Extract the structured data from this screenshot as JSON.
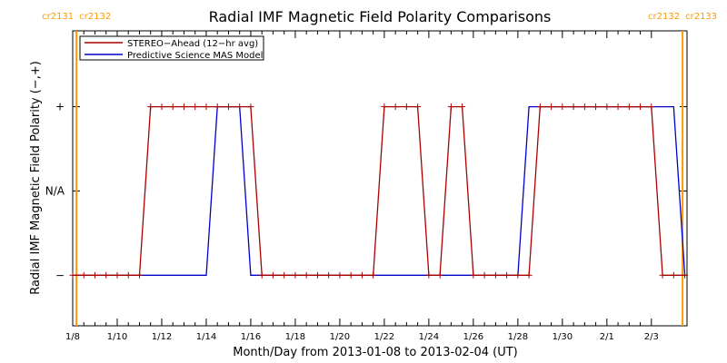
{
  "chart_data": {
    "type": "line",
    "title": "Radial IMF Magnetic Field Polarity Comparisons",
    "xlabel": "Month/Day from 2013-01-08 to 2013-02-04 (UT)",
    "ylabel": "Radial IMF Magnetic Field Polarity (−,+)",
    "xlim": [
      0,
      27.6
    ],
    "ylim": [
      -1.6,
      1.9
    ],
    "x_ticks": [
      {
        "x": 0,
        "label": "1/8"
      },
      {
        "x": 2,
        "label": "1/10"
      },
      {
        "x": 4,
        "label": "1/12"
      },
      {
        "x": 6,
        "label": "1/14"
      },
      {
        "x": 8,
        "label": "1/16"
      },
      {
        "x": 10,
        "label": "1/18"
      },
      {
        "x": 12,
        "label": "1/20"
      },
      {
        "x": 14,
        "label": "1/22"
      },
      {
        "x": 16,
        "label": "1/24"
      },
      {
        "x": 18,
        "label": "1/26"
      },
      {
        "x": 20,
        "label": "1/28"
      },
      {
        "x": 22,
        "label": "1/30"
      },
      {
        "x": 24,
        "label": "2/1"
      },
      {
        "x": 26,
        "label": "2/3"
      }
    ],
    "y_ticks": [
      {
        "y": 1,
        "label": "+"
      },
      {
        "y": 0,
        "label": "N/A"
      },
      {
        "y": -1,
        "label": "−"
      }
    ],
    "legend_position": "top-left",
    "carrington_markers": [
      {
        "x": 0.17,
        "left_label": "cr2131",
        "right_label": "cr2132",
        "color": "#ff9900"
      },
      {
        "x": 27.4,
        "left_label": "cr2132",
        "right_label": "cr2133",
        "color": "#ff9900"
      }
    ],
    "series": [
      {
        "name": "STEREO−Ahead (12−hr avg)",
        "color": "#aa0000",
        "markers": true,
        "x": [
          0,
          0.5,
          1,
          1.5,
          2,
          2.5,
          3,
          3.5,
          4,
          4.5,
          5,
          5.5,
          6,
          6.5,
          7,
          7.5,
          8,
          8.5,
          9,
          9.5,
          10,
          10.5,
          11,
          11.5,
          12,
          12.5,
          13,
          13.5,
          14,
          14.5,
          15,
          15.5,
          16,
          16.5,
          17,
          17.5,
          18,
          18.5,
          19,
          19.5,
          20,
          20.5,
          21,
          21.5,
          22,
          22.5,
          23,
          23.5,
          24,
          24.5,
          25,
          25.5,
          26,
          26.5,
          27,
          27.5
        ],
        "values": [
          -1,
          -1,
          -1,
          -1,
          -1,
          -1,
          -1,
          1,
          1,
          1,
          1,
          1,
          1,
          1,
          1,
          1,
          1,
          -1,
          -1,
          -1,
          -1,
          -1,
          -1,
          -1,
          -1,
          -1,
          -1,
          -1,
          1,
          1,
          1,
          1,
          -1,
          -1,
          1,
          1,
          -1,
          -1,
          -1,
          -1,
          -1,
          -1,
          1,
          1,
          1,
          1,
          1,
          1,
          1,
          1,
          1,
          1,
          1,
          -1,
          -1,
          -1
        ]
      },
      {
        "name": "Predictive Science MAS Model",
        "color": "#0000cc",
        "markers": false,
        "x": [
          0,
          0.5,
          1,
          1.5,
          2,
          2.5,
          3,
          3.5,
          4,
          4.5,
          5,
          5.5,
          6,
          6.5,
          7,
          7.5,
          8,
          8.5,
          9,
          9.5,
          10,
          10.5,
          11,
          11.5,
          12,
          12.5,
          13,
          13.5,
          14,
          14.5,
          15,
          15.5,
          16,
          16.5,
          17,
          17.5,
          18,
          18.5,
          19,
          19.5,
          20,
          20.5,
          21,
          21.5,
          22,
          22.5,
          23,
          23.5,
          24,
          24.5,
          25,
          25.5,
          26,
          26.5,
          27,
          27.5
        ],
        "values": [
          -1,
          -1,
          -1,
          -1,
          -1,
          -1,
          -1,
          -1,
          -1,
          -1,
          -1,
          -1,
          -1,
          1,
          1,
          1,
          -1,
          -1,
          -1,
          -1,
          -1,
          -1,
          -1,
          -1,
          -1,
          -1,
          -1,
          -1,
          -1,
          -1,
          -1,
          -1,
          -1,
          -1,
          -1,
          -1,
          -1,
          -1,
          -1,
          -1,
          -1,
          1,
          1,
          1,
          1,
          1,
          1,
          1,
          1,
          1,
          1,
          1,
          1,
          1,
          1,
          -1
        ]
      }
    ]
  }
}
